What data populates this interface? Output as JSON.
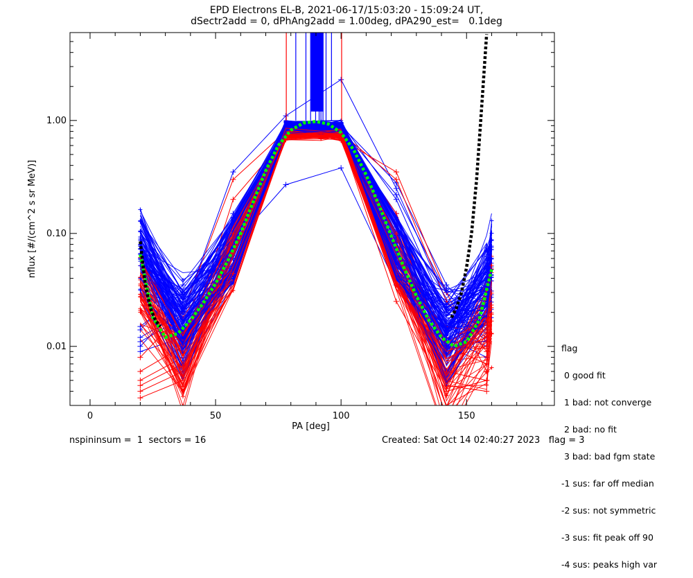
{
  "title": {
    "line1": "EPD Electrons EL-B, 2021-06-17/15:03:20 - 15:09:24 UT,",
    "line2": "dSectr2add = 0, dPhAng2add = 1.00deg, dPA290_est=   0.1deg"
  },
  "legend": {
    "heading": "flag",
    "items": [
      " 0 good fit",
      " 1 bad: not converge",
      " 2 bad: no fit",
      " 3 bad: bad fgm state",
      "-1 sus: far off median",
      "-2 sus: not symmetric",
      "-3 sus: fit peak off 90",
      "-4 sus: peaks high var"
    ]
  },
  "footer": {
    "left": "nspininsum =  1  sectors = 16",
    "right": "Created: Sat Oct 14 02:40:27 2023   flag = 3"
  },
  "chart_data": {
    "type": "line",
    "xlabel": "PA [deg]",
    "ylabel": "nflux [#/(cm^2 s sr MeV)]",
    "xlim": [
      -8,
      185
    ],
    "ylim": [
      0.003,
      6.0
    ],
    "yscale": "log",
    "xticks": [
      0,
      50,
      100,
      150
    ],
    "yticks": [
      {
        "value": 0.01,
        "label": "0.01"
      },
      {
        "value": 0.1,
        "label": "0.10"
      },
      {
        "value": 1.0,
        "label": "1.00"
      }
    ],
    "grid": false,
    "colors": {
      "blue": "#0000ff",
      "red": "#ff0000",
      "green": "#00ff00",
      "black": "#000000"
    },
    "sector_pa": [
      20,
      37,
      57,
      78,
      92,
      100,
      122,
      142,
      158,
      160
    ],
    "series": [
      {
        "color": "blue",
        "x": [
          20,
          37,
          57,
          78,
          92,
          100,
          122,
          142,
          158
        ],
        "y": [
          0.015,
          0.03,
          0.12,
          0.8,
          0.95,
          0.85,
          0.22,
          0.03,
          0.013
        ]
      },
      {
        "color": "blue",
        "x": [
          20,
          37,
          57,
          78,
          100,
          122,
          142,
          158
        ],
        "y": [
          0.012,
          0.02,
          0.35,
          1.1,
          2.3,
          0.25,
          0.025,
          0.011
        ]
      },
      {
        "color": "blue",
        "x": [
          20,
          37,
          57,
          78,
          100,
          122,
          142,
          158
        ],
        "y": [
          0.011,
          0.018,
          0.08,
          0.27,
          0.38,
          0.035,
          0.015,
          0.01
        ]
      },
      {
        "color": "blue",
        "x": [
          20,
          37,
          57,
          78,
          92,
          100,
          122,
          142,
          158
        ],
        "y": [
          0.01,
          0.025,
          0.15,
          0.85,
          0.9,
          0.9,
          0.28,
          0.035,
          0.014
        ]
      },
      {
        "color": "blue",
        "x": [
          20,
          37,
          57,
          78,
          92,
          100,
          122,
          142,
          158
        ],
        "y": [
          0.009,
          0.012,
          0.06,
          0.75,
          0.95,
          0.8,
          0.15,
          0.012,
          0.008
        ]
      },
      {
        "color": "blue",
        "x": [
          20,
          37,
          57,
          78,
          92,
          100,
          122,
          142,
          158
        ],
        "y": [
          0.014,
          0.035,
          0.1,
          0.9,
          0.97,
          0.95,
          0.2,
          0.02,
          0.012
        ]
      },
      {
        "color": "red",
        "x": [
          20,
          37,
          57,
          78,
          92,
          100,
          122,
          142,
          158
        ],
        "y": [
          0.005,
          0.008,
          0.2,
          0.7,
          0.7,
          0.68,
          0.35,
          0.03,
          0.006
        ]
      },
      {
        "color": "red",
        "x": [
          20,
          37,
          57,
          78,
          92,
          100,
          122,
          142,
          158
        ],
        "y": [
          0.004,
          0.006,
          0.05,
          0.68,
          0.72,
          0.7,
          0.025,
          0.004,
          0.005
        ]
      },
      {
        "color": "red",
        "x": [
          20,
          37,
          57,
          78,
          92,
          100,
          122,
          142,
          158
        ],
        "y": [
          0.006,
          0.01,
          0.12,
          0.75,
          0.78,
          0.74,
          0.15,
          0.01,
          0.007
        ]
      },
      {
        "color": "red",
        "x": [
          20,
          37,
          57,
          78,
          92,
          100,
          122,
          142,
          158
        ],
        "y": [
          0.0035,
          0.005,
          0.08,
          0.72,
          0.75,
          0.7,
          0.06,
          0.0045,
          0.004
        ]
      },
      {
        "color": "red",
        "x": [
          20,
          37,
          57,
          78,
          92,
          100,
          122,
          142,
          158
        ],
        "y": [
          0.008,
          0.02,
          0.3,
          0.8,
          0.82,
          0.78,
          0.3,
          0.025,
          0.009
        ]
      },
      {
        "color": "red",
        "x": [
          20,
          37,
          57,
          78,
          92,
          100,
          122,
          142,
          158
        ],
        "y": [
          0.0045,
          0.007,
          0.04,
          0.7,
          0.76,
          0.72,
          0.1,
          0.006,
          0.005
        ]
      }
    ],
    "fit_green": {
      "color": "green",
      "x": [
        20,
        25,
        30,
        35,
        40,
        45,
        50,
        55,
        60,
        65,
        70,
        75,
        80,
        85,
        90,
        95,
        100,
        105,
        110,
        115,
        120,
        125,
        130,
        135,
        140,
        145,
        150,
        155,
        160
      ],
      "y": [
        0.065,
        0.018,
        0.012,
        0.013,
        0.017,
        0.024,
        0.036,
        0.058,
        0.1,
        0.19,
        0.36,
        0.6,
        0.82,
        0.95,
        0.98,
        0.93,
        0.78,
        0.55,
        0.33,
        0.18,
        0.095,
        0.05,
        0.028,
        0.017,
        0.012,
        0.01,
        0.011,
        0.017,
        0.048
      ]
    },
    "fit_black": {
      "color": "black",
      "left": {
        "x": [
          20,
          22,
          24,
          26,
          28
        ],
        "y": [
          0.085,
          0.035,
          0.022,
          0.017,
          0.015
        ]
      },
      "right": {
        "x": [
          144,
          146,
          148,
          150,
          152,
          154,
          156,
          158
        ],
        "y": [
          0.018,
          0.022,
          0.03,
          0.05,
          0.1,
          0.3,
          1.3,
          5.8
        ]
      }
    },
    "spikes": {
      "x": [
        78,
        82,
        86,
        88,
        90,
        91,
        92,
        93,
        94,
        96,
        100
      ]
    }
  }
}
